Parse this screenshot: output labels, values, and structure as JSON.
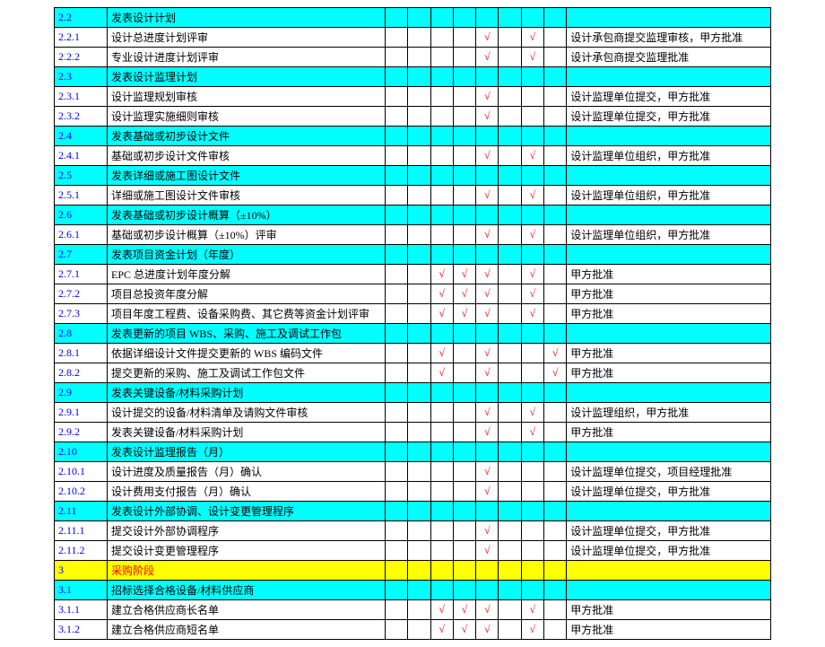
{
  "colors": {
    "header_bg": "#00ffff",
    "phase_bg": "#ffff00",
    "id_text": "#0000ff",
    "check_mark": "#ff0000",
    "border": "#000000",
    "bg": "#ffffff"
  },
  "check_symbol": "√",
  "rows": [
    {
      "type": "header",
      "id": "2.2",
      "desc": "发表设计计划",
      "checks": [
        "",
        "",
        "",
        "",
        "",
        "",
        "",
        ""
      ],
      "remark": ""
    },
    {
      "type": "item",
      "id": "2.2.1",
      "desc": "设计总进度计划评审",
      "checks": [
        "",
        "",
        "",
        "",
        "√",
        "",
        "√",
        ""
      ],
      "remark": "设计承包商提交监理审核，甲方批准"
    },
    {
      "type": "item",
      "id": "2.2.2",
      "desc": "专业设计进度计划评审",
      "checks": [
        "",
        "",
        "",
        "",
        "√",
        "",
        "√",
        ""
      ],
      "remark": "设计承包商提交监理批准"
    },
    {
      "type": "header",
      "id": "2.3",
      "desc": "发表设计监理计划",
      "checks": [
        "",
        "",
        "",
        "",
        "",
        "",
        "",
        ""
      ],
      "remark": ""
    },
    {
      "type": "item",
      "id": "2.3.1",
      "desc": "设计监理规划审核",
      "checks": [
        "",
        "",
        "",
        "",
        "√",
        "",
        "",
        ""
      ],
      "remark": "设计监理单位提交，甲方批准"
    },
    {
      "type": "item",
      "id": "2.3.2",
      "desc": "设计监理实施细则审核",
      "checks": [
        "",
        "",
        "",
        "",
        "√",
        "",
        "",
        ""
      ],
      "remark": "设计监理单位提交，甲方批准"
    },
    {
      "type": "header",
      "id": "2.4",
      "desc": "发表基础或初步设计文件",
      "checks": [
        "",
        "",
        "",
        "",
        "",
        "",
        "",
        ""
      ],
      "remark": ""
    },
    {
      "type": "item",
      "id": "2.4.1",
      "desc": "基础或初步设计文件审核",
      "checks": [
        "",
        "",
        "",
        "",
        "√",
        "",
        "√",
        ""
      ],
      "remark": "设计监理单位组织，甲方批准"
    },
    {
      "type": "header",
      "id": "2.5",
      "desc": "发表详细或施工图设计文件",
      "checks": [
        "",
        "",
        "",
        "",
        "",
        "",
        "",
        ""
      ],
      "remark": ""
    },
    {
      "type": "item",
      "id": "2.5.1",
      "desc": "详细或施工图设计文件审核",
      "checks": [
        "",
        "",
        "",
        "",
        "√",
        "",
        "√",
        ""
      ],
      "remark": "设计监理单位组织，甲方批准"
    },
    {
      "type": "header",
      "id": "2.6",
      "desc": "发表基础或初步设计概算（±10%）",
      "checks": [
        "",
        "",
        "",
        "",
        "",
        "",
        "",
        ""
      ],
      "remark": ""
    },
    {
      "type": "item",
      "id": "2.6.1",
      "desc": "基础或初步设计概算（±10%）评审",
      "checks": [
        "",
        "",
        "",
        "",
        "√",
        "",
        "√",
        ""
      ],
      "remark": "设计监理单位组织，甲方批准"
    },
    {
      "type": "header",
      "id": "2.7",
      "desc": "发表项目资金计划（年度）",
      "checks": [
        "",
        "",
        "",
        "",
        "",
        "",
        "",
        ""
      ],
      "remark": ""
    },
    {
      "type": "item",
      "id": "2.7.1",
      "desc": "EPC 总进度计划年度分解",
      "checks": [
        "",
        "",
        "√",
        "√",
        "√",
        "",
        "√",
        ""
      ],
      "remark": "甲方批准"
    },
    {
      "type": "item",
      "id": "2.7.2",
      "desc": "项目总投资年度分解",
      "checks": [
        "",
        "",
        "√",
        "√",
        "√",
        "",
        "√",
        ""
      ],
      "remark": "甲方批准"
    },
    {
      "type": "item",
      "id": "2.7.3",
      "desc": "项目年度工程费、设备采购费、其它费等资金计划评审",
      "checks": [
        "",
        "",
        "√",
        "√",
        "√",
        "",
        "√",
        ""
      ],
      "remark": "甲方批准"
    },
    {
      "type": "header",
      "id": "2.8",
      "desc": "发表更新的项目 WBS、采购、施工及调试工作包",
      "checks": [
        "",
        "",
        "",
        "",
        "",
        "",
        "",
        ""
      ],
      "remark": ""
    },
    {
      "type": "item",
      "id": "2.8.1",
      "desc": "依据详细设计文件提交更新的 WBS 编码文件",
      "checks": [
        "",
        "",
        "√",
        "",
        "√",
        "",
        "",
        "√"
      ],
      "remark": "甲方批准"
    },
    {
      "type": "item",
      "id": "2.8.2",
      "desc": "提交更新的采购、施工及调试工作包文件",
      "checks": [
        "",
        "",
        "√",
        "",
        "√",
        "",
        "",
        "√"
      ],
      "remark": "甲方批准"
    },
    {
      "type": "header",
      "id": "2.9",
      "desc": "发表关键设备/材料采购计划",
      "checks": [
        "",
        "",
        "",
        "",
        "",
        "",
        "",
        ""
      ],
      "remark": ""
    },
    {
      "type": "item",
      "id": "2.9.1",
      "desc": "设计提交的设备/材料清单及请购文件审核",
      "checks": [
        "",
        "",
        "",
        "",
        "√",
        "",
        "√",
        ""
      ],
      "remark": "设计监理组织，甲方批准"
    },
    {
      "type": "item",
      "id": "2.9.2",
      "desc": "发表关键设备/材料采购计划",
      "checks": [
        "",
        "",
        "",
        "",
        "√",
        "",
        "√",
        ""
      ],
      "remark": "甲方批准"
    },
    {
      "type": "header",
      "id": "2.10",
      "desc": "发表设计监理报告（月）",
      "checks": [
        "",
        "",
        "",
        "",
        "",
        "",
        "",
        ""
      ],
      "remark": ""
    },
    {
      "type": "item",
      "id": "2.10.1",
      "desc": "设计进度及质量报告（月）确认",
      "checks": [
        "",
        "",
        "",
        "",
        "√",
        "",
        "",
        ""
      ],
      "remark": "设计监理单位提交，项目经理批准"
    },
    {
      "type": "item",
      "id": "2.10.2",
      "desc": "设计费用支付报告（月）确认",
      "checks": [
        "",
        "",
        "",
        "",
        "√",
        "",
        "",
        ""
      ],
      "remark": "设计监理单位提交，甲方批准"
    },
    {
      "type": "header",
      "id": "2.11",
      "desc": "发表设计外部协调、设计变更管理程序",
      "checks": [
        "",
        "",
        "",
        "",
        "",
        "",
        "",
        ""
      ],
      "remark": ""
    },
    {
      "type": "item",
      "id": "2.11.1",
      "desc": "提交设计外部协调程序",
      "checks": [
        "",
        "",
        "",
        "",
        "√",
        "",
        "",
        ""
      ],
      "remark": "设计监理单位提交，甲方批准"
    },
    {
      "type": "item",
      "id": "2.11.2",
      "desc": "提交设计变更管理程序",
      "checks": [
        "",
        "",
        "",
        "",
        "√",
        "",
        "",
        ""
      ],
      "remark": "设计监理单位提交，甲方批准"
    },
    {
      "type": "phase",
      "id": "3",
      "desc": "采购阶段",
      "checks": [
        "",
        "",
        "",
        "",
        "",
        "",
        "",
        ""
      ],
      "remark": ""
    },
    {
      "type": "header",
      "id": "3.1",
      "desc": "招标选择合格设备/材料供应商",
      "checks": [
        "",
        "",
        "",
        "",
        "",
        "",
        "",
        ""
      ],
      "remark": ""
    },
    {
      "type": "item",
      "id": "3.1.1",
      "desc": "建立合格供应商长名单",
      "checks": [
        "",
        "",
        "√",
        "√",
        "√",
        "",
        "√",
        ""
      ],
      "remark": "甲方批准"
    },
    {
      "type": "item",
      "id": "3.1.2",
      "desc": "建立合格供应商短名单",
      "checks": [
        "",
        "",
        "√",
        "√",
        "√",
        "",
        "√",
        ""
      ],
      "remark": "甲方批准"
    }
  ]
}
